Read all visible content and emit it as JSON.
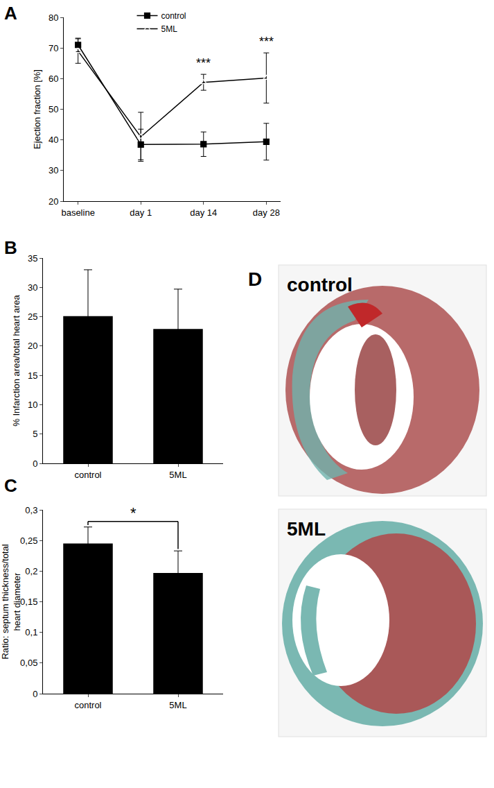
{
  "chart_data": [
    {
      "panel": "A",
      "type": "line",
      "ylabel": "Ejection fraction [%]",
      "categories": [
        "baseline",
        "day 1",
        "day 14",
        "day 28"
      ],
      "series": [
        {
          "name": "control",
          "color": "#000000",
          "marker": "square",
          "values": [
            71,
            38.5,
            38.6,
            39.4
          ],
          "errors": [
            2.2,
            5,
            4,
            6
          ]
        },
        {
          "name": "5ML",
          "color": "#000000",
          "marker": "triangle-open",
          "values": [
            69,
            41,
            58.8,
            60.2
          ],
          "errors": [
            4,
            8,
            2.6,
            8.2
          ]
        }
      ],
      "ylim": [
        20,
        80
      ],
      "yticks": [
        20,
        30,
        40,
        50,
        60,
        70,
        80
      ],
      "grid": false,
      "legend": "top",
      "annotations": [
        {
          "category": "day 14",
          "text": "***"
        },
        {
          "category": "day 28",
          "text": "***"
        }
      ]
    },
    {
      "panel": "B",
      "type": "bar",
      "ylabel": "% Infarction area/total heart area",
      "categories": [
        "control",
        "5ML"
      ],
      "values": [
        25.1,
        22.9
      ],
      "errors": [
        7.9,
        6.8
      ],
      "color": "#000000",
      "ylim": [
        0,
        35
      ],
      "yticks": [
        0,
        5,
        10,
        15,
        20,
        25,
        30,
        35
      ],
      "grid": false
    },
    {
      "panel": "C",
      "type": "bar",
      "ylabel": [
        "Ratio: septum thickness/total",
        "heart diameter"
      ],
      "categories": [
        "control",
        "5ML"
      ],
      "values": [
        0.245,
        0.197
      ],
      "errors": [
        0.027,
        0.036
      ],
      "color": "#000000",
      "ylim": [
        0,
        0.3
      ],
      "yticks": [
        0,
        {
          "value": 0.05,
          "label": "0,05"
        },
        {
          "value": 0.1,
          "label": "0,1"
        },
        {
          "value": 0.15,
          "label": "0,15"
        },
        {
          "value": 0.2,
          "label": "0,2"
        },
        {
          "value": 0.25,
          "label": "0,25"
        },
        {
          "value": 0.3,
          "label": "0,3"
        }
      ],
      "grid": false,
      "annotations": [
        {
          "categories": [
            "control",
            "5ML"
          ],
          "text": "*"
        }
      ]
    }
  ],
  "image_panel": {
    "panel": "D",
    "labels": [
      "control",
      "5ML"
    ]
  }
}
